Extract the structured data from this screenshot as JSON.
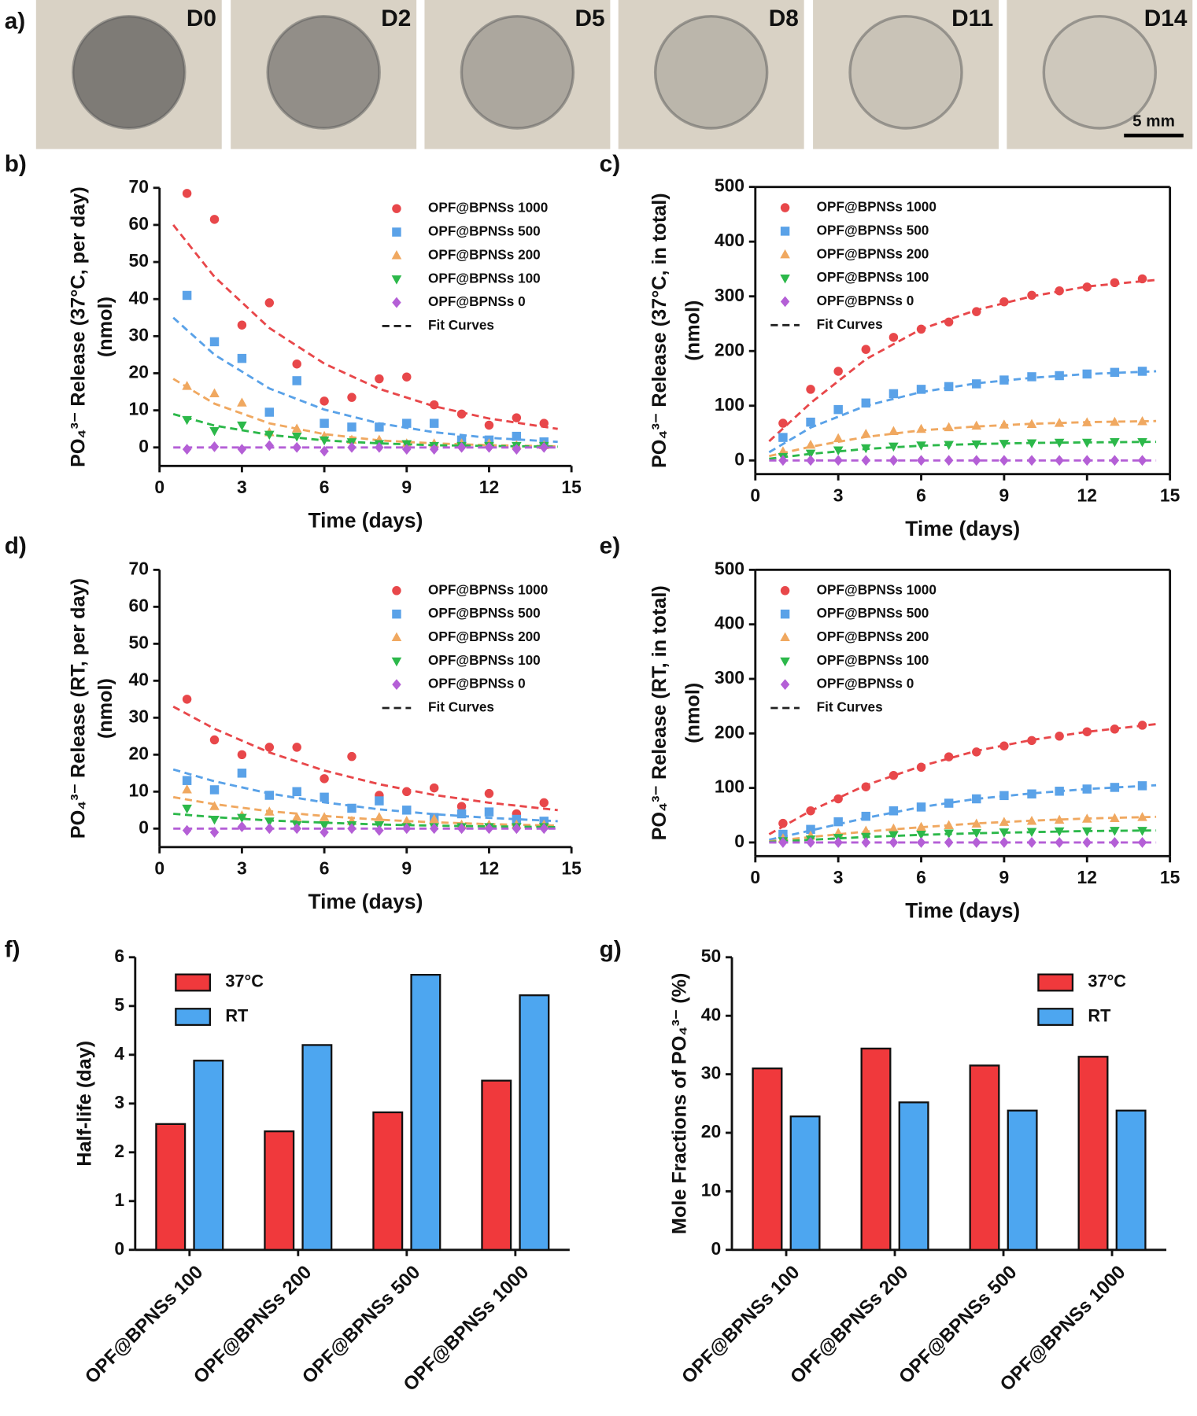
{
  "photos": {
    "panel": "a)",
    "labels": [
      "D0",
      "D2",
      "D5",
      "D8",
      "D11",
      "D14"
    ],
    "scale_bar": "5 mm"
  },
  "chart_data": [
    {
      "type": "scatter",
      "panel": "b)",
      "xlabel": "Time (days)",
      "ylabel": [
        "PO₄³⁻ Release (37°C, per day)",
        "(nmol)"
      ],
      "xlim": [
        0,
        15
      ],
      "xticks": [
        0,
        3,
        6,
        9,
        12,
        15
      ],
      "ylim": [
        -5,
        70
      ],
      "yticks": [
        0,
        10,
        20,
        30,
        40,
        50,
        60,
        70
      ],
      "frame": "axes",
      "legend": "upper right",
      "fit_label": "Fit Curves",
      "x": [
        1,
        2,
        3,
        4,
        5,
        6,
        7,
        8,
        9,
        10,
        11,
        12,
        13,
        14
      ],
      "fit_x": [
        0.5,
        2,
        4,
        6,
        8,
        10,
        12,
        14.5
      ],
      "series": [
        {
          "name": "OPF@BPNSs 1000",
          "color": "#e8474a",
          "marker": "circle",
          "values": [
            68.5,
            61.5,
            33,
            39,
            22.5,
            12.5,
            13.5,
            18.5,
            19,
            11.5,
            9,
            6,
            8,
            6.5
          ],
          "fit": [
            60,
            46,
            32.2,
            22.6,
            15.8,
            11.1,
            7.8,
            5
          ]
        },
        {
          "name": "OPF@BPNSs 500",
          "color": "#5aa2e8",
          "marker": "square",
          "values": [
            41,
            28.5,
            24,
            9.5,
            18,
            6.5,
            5.5,
            5.5,
            6.5,
            6.5,
            2,
            2,
            3,
            1.5
          ],
          "fit": [
            35,
            25,
            15.9,
            10.2,
            6.5,
            4.1,
            2.6,
            1.5
          ]
        },
        {
          "name": "OPF@BPNSs 200",
          "color": "#f0a860",
          "marker": "triangle-up",
          "values": [
            16.5,
            14.5,
            12,
            4,
            5,
            3,
            2,
            2,
            1,
            1,
            1,
            1,
            0.5,
            0.5
          ],
          "fit": [
            18.5,
            11.8,
            6.5,
            3.6,
            1.9,
            1.1,
            0.6,
            0.3
          ]
        },
        {
          "name": "OPF@BPNSs 100",
          "color": "#2cb84a",
          "marker": "triangle-down",
          "values": [
            7.5,
            4.5,
            6,
            3.5,
            3,
            2,
            1.5,
            1,
            1,
            0.5,
            0.5,
            0.5,
            0.5,
            0.5
          ],
          "fit": [
            9,
            5.9,
            3.4,
            1.9,
            1.1,
            0.6,
            0.4,
            0.2
          ]
        },
        {
          "name": "OPF@BPNSs 0",
          "color": "#b45fd6",
          "marker": "diamond",
          "values": [
            -0.5,
            0.2,
            -0.5,
            0.5,
            0,
            -1,
            0,
            0,
            -0.5,
            -0.5,
            0,
            0,
            -0.5,
            0
          ],
          "fit": [
            0,
            0,
            0,
            0,
            0,
            0,
            0,
            0
          ]
        }
      ]
    },
    {
      "type": "scatter",
      "panel": "c)",
      "xlabel": "Time (days)",
      "ylabel": [
        "PO₄³⁻ Release (37°C, in total)",
        "(nmol)"
      ],
      "xlim": [
        0,
        15
      ],
      "xticks": [
        0,
        3,
        6,
        9,
        12,
        15
      ],
      "ylim": [
        -25,
        500
      ],
      "yticks": [
        0,
        100,
        200,
        300,
        400,
        500
      ],
      "frame": "box",
      "legend": "upper left",
      "fit_label": "Fit Curves",
      "x": [
        1,
        2,
        3,
        4,
        5,
        6,
        7,
        8,
        9,
        10,
        11,
        12,
        13,
        14
      ],
      "fit_x": [
        0.5,
        2,
        4,
        6,
        8,
        10,
        12,
        14.5
      ],
      "series": [
        {
          "name": "OPF@BPNSs 1000",
          "color": "#e8474a",
          "marker": "circle",
          "values": [
            68,
            130,
            163,
            203,
            225,
            240,
            253,
            272,
            290,
            302,
            310,
            317,
            325,
            332
          ],
          "fit": [
            35,
            105,
            185,
            240,
            275,
            300,
            318,
            330
          ]
        },
        {
          "name": "OPF@BPNSs 500",
          "color": "#5aa2e8",
          "marker": "square",
          "values": [
            42,
            70,
            93,
            105,
            122,
            130,
            135,
            140,
            147,
            153,
            155,
            158,
            161,
            163
          ],
          "fit": [
            15,
            60,
            100,
            125,
            141,
            151,
            158,
            163
          ]
        },
        {
          "name": "OPF@BPNSs 200",
          "color": "#f0a860",
          "marker": "triangle-up",
          "values": [
            16,
            28,
            40,
            48,
            53,
            57,
            60,
            63,
            65,
            66,
            68,
            69,
            70,
            71
          ],
          "fit": [
            8,
            25,
            43,
            55,
            62,
            67,
            70,
            72
          ]
        },
        {
          "name": "OPF@BPNSs 100",
          "color": "#2cb84a",
          "marker": "triangle-down",
          "values": [
            7,
            13,
            19,
            23,
            26,
            28,
            29,
            30,
            31,
            32,
            33,
            33,
            34,
            34
          ],
          "fit": [
            3,
            12,
            21,
            27,
            30,
            32,
            33,
            34
          ]
        },
        {
          "name": "OPF@BPNSs 0",
          "color": "#b45fd6",
          "marker": "diamond",
          "values": [
            0,
            0,
            0,
            0,
            0,
            0,
            0,
            0,
            0,
            0,
            0,
            0,
            0,
            0
          ],
          "fit": [
            0,
            0,
            0,
            0,
            0,
            0,
            0,
            0
          ]
        }
      ]
    },
    {
      "type": "scatter",
      "panel": "d)",
      "xlabel": "Time (days)",
      "ylabel": [
        "PO₄³⁻ Release (RT, per day)",
        "(nmol)"
      ],
      "xlim": [
        0,
        15
      ],
      "xticks": [
        0,
        3,
        6,
        9,
        12,
        15
      ],
      "ylim": [
        -5,
        70
      ],
      "yticks": [
        0,
        10,
        20,
        30,
        40,
        50,
        60,
        70
      ],
      "frame": "axes",
      "legend": "upper right",
      "fit_label": "Fit Curves",
      "x": [
        1,
        2,
        3,
        4,
        5,
        6,
        7,
        8,
        9,
        10,
        11,
        12,
        13,
        14
      ],
      "fit_x": [
        0.5,
        2,
        4,
        6,
        8,
        10,
        12,
        14.5
      ],
      "series": [
        {
          "name": "OPF@BPNSs 1000",
          "color": "#e8474a",
          "marker": "circle",
          "values": [
            35,
            24,
            20,
            22,
            22,
            13.5,
            19.5,
            9,
            10,
            11,
            6,
            9.5,
            4,
            7
          ],
          "fit": [
            33,
            27,
            20.6,
            15.7,
            12,
            9.1,
            7,
            5
          ]
        },
        {
          "name": "OPF@BPNSs 500",
          "color": "#5aa2e8",
          "marker": "square",
          "values": [
            13,
            10.5,
            15,
            9,
            10,
            8.5,
            5.5,
            7.5,
            5,
            3,
            4,
            4.5,
            2.5,
            2
          ],
          "fit": [
            16,
            12.8,
            9.5,
            7.1,
            5.2,
            3.9,
            2.9,
            2
          ]
        },
        {
          "name": "OPF@BPNSs 200",
          "color": "#f0a860",
          "marker": "triangle-up",
          "values": [
            10.5,
            6,
            3.5,
            4.5,
            3,
            3,
            2,
            3,
            2,
            2.5,
            1,
            1,
            1,
            1
          ],
          "fit": [
            8.5,
            6.6,
            4.7,
            3.4,
            2.4,
            1.7,
            1.2,
            0.8
          ]
        },
        {
          "name": "OPF@BPNSs 100",
          "color": "#2cb84a",
          "marker": "triangle-down",
          "values": [
            5.5,
            2.5,
            3,
            2,
            1,
            1,
            1,
            1,
            0.5,
            0.5,
            0.5,
            0.5,
            0.5,
            0.5
          ],
          "fit": [
            4,
            3.1,
            2.2,
            1.6,
            1.1,
            0.8,
            0.6,
            0.4
          ]
        },
        {
          "name": "OPF@BPNSs 0",
          "color": "#b45fd6",
          "marker": "diamond",
          "values": [
            -0.5,
            -1,
            0.5,
            0,
            0,
            -1,
            0,
            -0.5,
            0,
            0,
            0,
            0,
            0,
            0
          ],
          "fit": [
            0,
            0,
            0,
            0,
            0,
            0,
            0,
            0
          ]
        }
      ]
    },
    {
      "type": "scatter",
      "panel": "e)",
      "xlabel": "Time (days)",
      "ylabel": [
        "PO₄³⁻ Release (RT, in total)",
        "(nmol)"
      ],
      "xlim": [
        0,
        15
      ],
      "xticks": [
        0,
        3,
        6,
        9,
        12,
        15
      ],
      "ylim": [
        -25,
        500
      ],
      "yticks": [
        0,
        100,
        200,
        300,
        400,
        500
      ],
      "frame": "box",
      "legend": "upper left",
      "fit_label": "Fit Curves",
      "x": [
        1,
        2,
        3,
        4,
        5,
        6,
        7,
        8,
        9,
        10,
        11,
        12,
        13,
        14
      ],
      "fit_x": [
        0.5,
        2,
        4,
        6,
        8,
        10,
        12,
        14.5
      ],
      "series": [
        {
          "name": "OPF@BPNSs 1000",
          "color": "#e8474a",
          "marker": "circle",
          "values": [
            35,
            58,
            80,
            102,
            123,
            138,
            157,
            166,
            177,
            187,
            195,
            203,
            208,
            215
          ],
          "fit": [
            15,
            58,
            105,
            140,
            168,
            188,
            203,
            217
          ]
        },
        {
          "name": "OPF@BPNSs 500",
          "color": "#5aa2e8",
          "marker": "square",
          "values": [
            15,
            24,
            38,
            48,
            58,
            65,
            72,
            80,
            86,
            89,
            94,
            98,
            101,
            104
          ],
          "fit": [
            5,
            22,
            45,
            65,
            80,
            90,
            98,
            105
          ]
        },
        {
          "name": "OPF@BPNSs 200",
          "color": "#f0a860",
          "marker": "triangle-up",
          "values": [
            7,
            12,
            17,
            21,
            25,
            28,
            31,
            34,
            37,
            39,
            41,
            43,
            44,
            46
          ],
          "fit": [
            2,
            10,
            20,
            28,
            35,
            40,
            44,
            47
          ]
        },
        {
          "name": "OPF@BPNSs 100",
          "color": "#2cb84a",
          "marker": "triangle-down",
          "values": [
            3,
            6,
            9,
            11,
            14,
            15,
            17,
            18,
            19,
            20,
            21,
            21,
            22,
            22
          ],
          "fit": [
            1,
            5,
            10,
            14,
            17,
            19,
            21,
            22
          ]
        },
        {
          "name": "OPF@BPNSs 0",
          "color": "#b45fd6",
          "marker": "diamond",
          "values": [
            0,
            0,
            0,
            0,
            0,
            0,
            0,
            0,
            0,
            0,
            0,
            0,
            0,
            0
          ],
          "fit": [
            0,
            0,
            0,
            0,
            0,
            0,
            0,
            0
          ]
        }
      ]
    },
    {
      "type": "bar",
      "panel": "f)",
      "ylabel": [
        "Half-life (day)"
      ],
      "ylim": [
        0,
        6
      ],
      "yticks": [
        0,
        1,
        2,
        3,
        4,
        5,
        6
      ],
      "frame": "axes",
      "legend": "upper left",
      "categories": [
        "OPF@BPNSs 100",
        "OPF@BPNSs 200",
        "OPF@BPNSs 500",
        "OPF@BPNSs 1000"
      ],
      "series": [
        {
          "name": "37°C",
          "color": "#f0393c",
          "values": [
            2.58,
            2.43,
            2.82,
            3.47
          ]
        },
        {
          "name": "RT",
          "color": "#4da6f0",
          "values": [
            3.88,
            4.2,
            5.64,
            5.22
          ]
        }
      ]
    },
    {
      "type": "bar",
      "panel": "g)",
      "ylabel": [
        "Mole Fractions of PO₄³⁻ (%)"
      ],
      "ylim": [
        0,
        50
      ],
      "yticks": [
        0,
        10,
        20,
        30,
        40,
        50
      ],
      "frame": "axes",
      "legend": "upper right",
      "categories": [
        "OPF@BPNSs 100",
        "OPF@BPNSs 200",
        "OPF@BPNSs 500",
        "OPF@BPNSs 1000"
      ],
      "series": [
        {
          "name": "37°C",
          "color": "#f0393c",
          "values": [
            31,
            34.4,
            31.5,
            33
          ]
        },
        {
          "name": "RT",
          "color": "#4da6f0",
          "values": [
            22.8,
            25.2,
            23.8,
            23.8
          ]
        }
      ]
    }
  ]
}
